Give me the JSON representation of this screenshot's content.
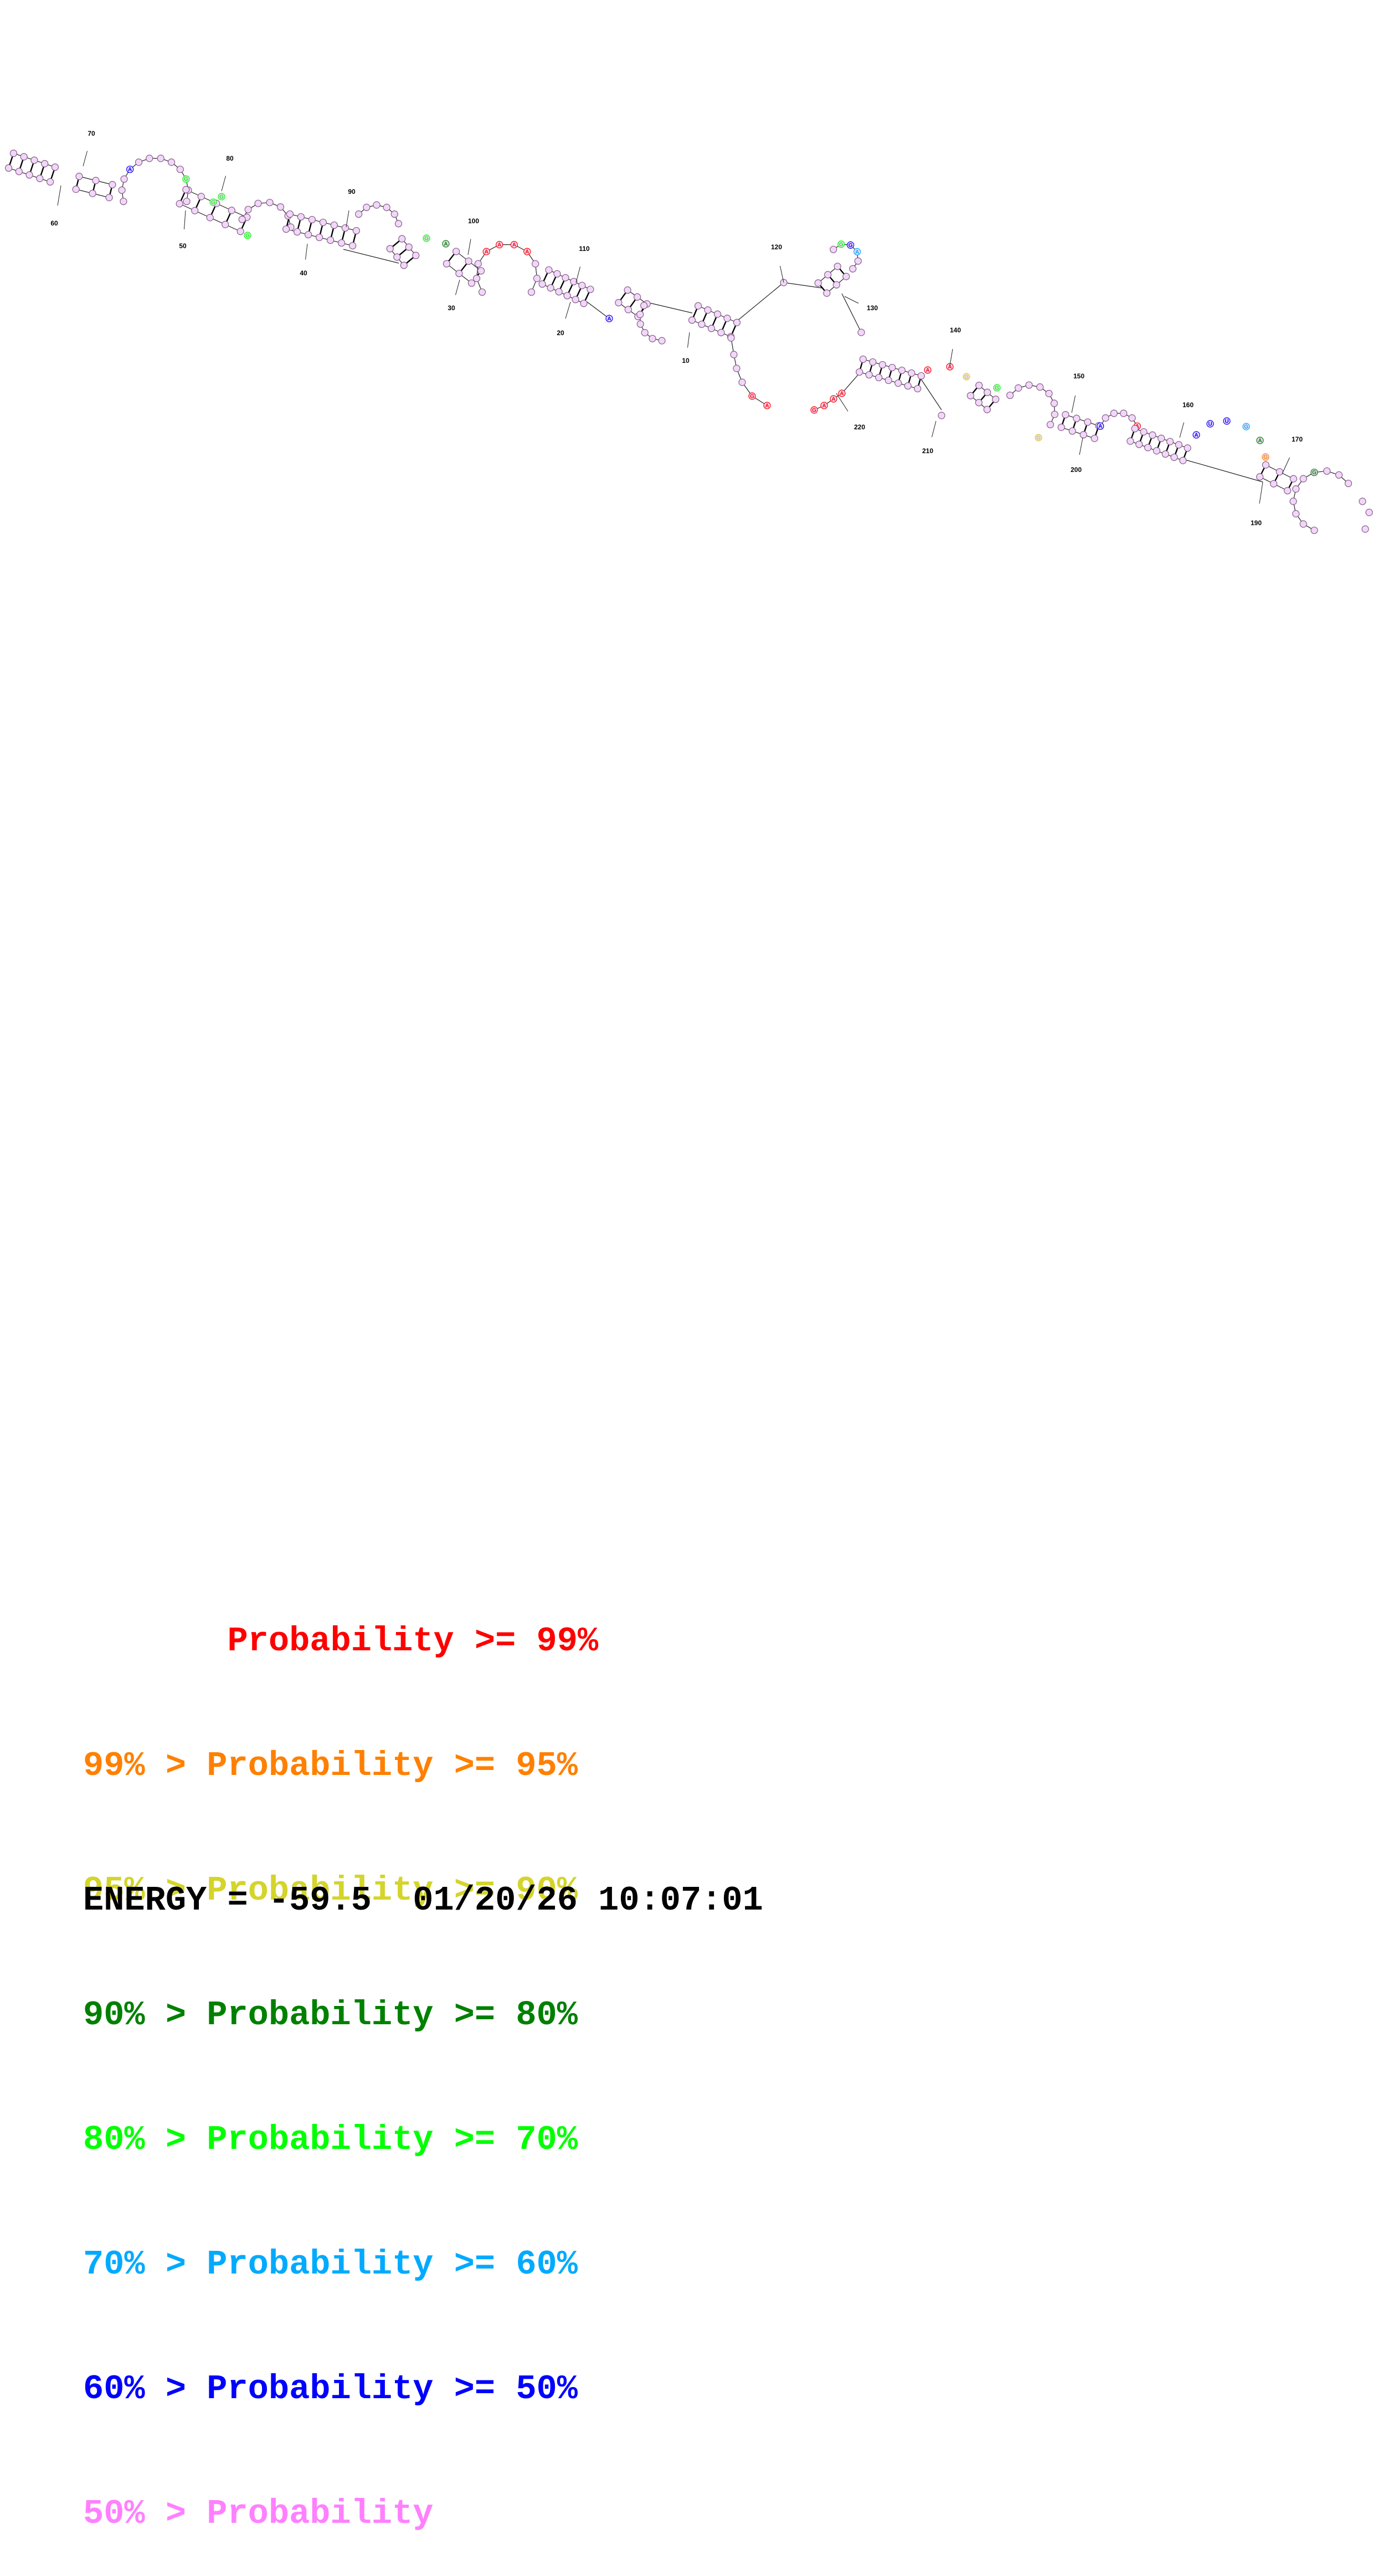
{
  "diagram": {
    "position_labels": [
      "10",
      "20",
      "30",
      "40",
      "50",
      "60",
      "70",
      "80",
      "90",
      "100",
      "110",
      "120",
      "130",
      "140",
      "150",
      "160",
      "170",
      "190",
      "200",
      "210",
      "220"
    ],
    "colors": {
      "p99": "#ff0000",
      "p95": "#ff8000",
      "p90": "#d4d42a",
      "p80": "#008000",
      "p70": "#00ff00",
      "p60": "#00aaff",
      "p50": "#0000ff",
      "plow": "#ff80ff"
    }
  },
  "legend": [
    {
      "prefix": "       ",
      "label": "Probability >= 99%",
      "color": "#ff0000"
    },
    {
      "prefix": "99% > ",
      "label": "Probability >= 95%",
      "color": "#ff8000"
    },
    {
      "prefix": "95% > ",
      "label": "Probability >= 90%",
      "color": "#d4d42a"
    },
    {
      "prefix": "90% > ",
      "label": "Probability >= 80%",
      "color": "#008000"
    },
    {
      "prefix": "80% > ",
      "label": "Probability >= 70%",
      "color": "#00ff00"
    },
    {
      "prefix": "70% > ",
      "label": "Probability >= 60%",
      "color": "#00aaff"
    },
    {
      "prefix": "60% > ",
      "label": "Probability >= 50%",
      "color": "#0000ff"
    },
    {
      "prefix": "50% > ",
      "label": "Probability",
      "color": "#ff80ff"
    }
  ],
  "energy_line": "ENERGY = -59.5  01/20/26 10:07:01"
}
